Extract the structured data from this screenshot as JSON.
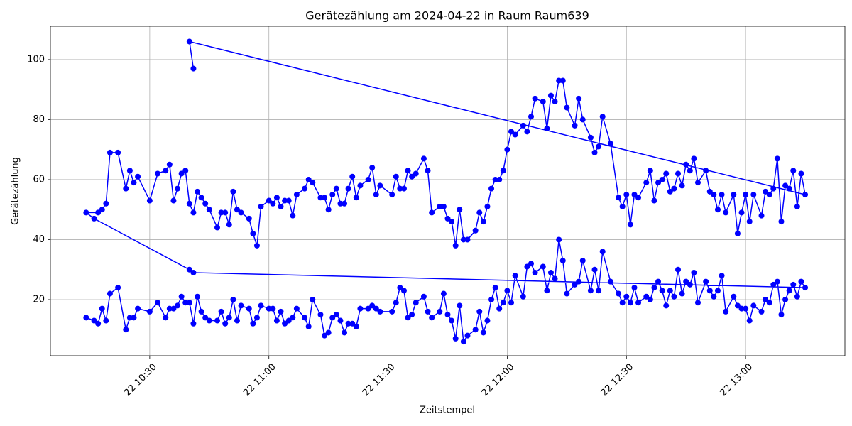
{
  "chart_data": {
    "type": "line",
    "title": "Gerätezählung am 2024-04-22 in Raum Raum639",
    "x_label": "Zeitstempel",
    "y_label": "Gerätezählung",
    "color": "#0000ff",
    "grid": true,
    "xlim": [
      "22 10:05",
      "22 13:25"
    ],
    "xticks": [
      "22 10:30",
      "22 11:00",
      "22 11:30",
      "22 12:00",
      "22 12:30",
      "22 13:00"
    ],
    "ylim": [
      1.3,
      111.1
    ],
    "yticks": [
      20,
      40,
      60,
      80,
      100
    ],
    "x": [
      "22 10:14",
      "22 10:16",
      "22 10:17",
      "22 10:18",
      "22 10:19",
      "22 10:20",
      "22 10:22",
      "22 10:24",
      "22 10:25",
      "22 10:26",
      "22 10:27",
      "22 10:30",
      "22 10:32",
      "22 10:34",
      "22 10:35",
      "22 10:36",
      "22 10:37",
      "22 10:38",
      "22 10:39",
      "22 10:40",
      "22 10:41",
      "22 10:42",
      "22 10:43",
      "22 10:44",
      "22 10:45",
      "22 10:47",
      "22 10:48",
      "22 10:49",
      "22 10:50",
      "22 10:51",
      "22 10:52",
      "22 10:53",
      "22 10:55",
      "22 10:56",
      "22 10:57",
      "22 10:58",
      "22 11:00",
      "22 11:01",
      "22 11:02",
      "22 11:03",
      "22 11:04",
      "22 11:05",
      "22 11:06",
      "22 11:07",
      "22 11:09",
      "22 11:10",
      "22 11:11",
      "22 11:13",
      "22 11:14",
      "22 11:15",
      "22 11:16",
      "22 11:17",
      "22 11:18",
      "22 11:19",
      "22 11:20",
      "22 11:21",
      "22 11:22",
      "22 11:23",
      "22 11:25",
      "22 11:26",
      "22 11:27",
      "22 11:28",
      "22 11:31",
      "22 11:32",
      "22 11:33",
      "22 11:34",
      "22 11:35",
      "22 11:36",
      "22 11:37",
      "22 11:39",
      "22 11:40",
      "22 11:41",
      "22 11:43",
      "22 11:44",
      "22 11:45",
      "22 11:46",
      "22 11:47",
      "22 11:48",
      "22 11:49",
      "22 11:50",
      "22 11:52",
      "22 11:53",
      "22 11:54",
      "22 11:55",
      "22 11:56",
      "22 11:57",
      "22 11:58",
      "22 11:59",
      "22 12:00",
      "22 12:01",
      "22 12:02",
      "22 12:04",
      "22 12:05",
      "22 12:06",
      "22 12:07",
      "22 12:09",
      "22 12:10",
      "22 12:11",
      "22 12:12",
      "22 12:13",
      "22 12:14",
      "22 12:15",
      "22 12:17",
      "22 12:18",
      "22 12:19",
      "22 12:21",
      "22 12:22",
      "22 12:23",
      "22 12:24",
      "22 12:26",
      "22 12:28",
      "22 12:29",
      "22 12:30",
      "22 12:31",
      "22 12:32",
      "22 12:33",
      "22 12:35",
      "22 12:36",
      "22 12:37",
      "22 12:38",
      "22 12:39",
      "22 12:40",
      "22 12:41",
      "22 12:42",
      "22 12:43",
      "22 12:44",
      "22 12:45",
      "22 12:46",
      "22 12:47",
      "22 12:48",
      "22 12:50",
      "22 12:51",
      "22 12:52",
      "22 12:53",
      "22 12:54",
      "22 12:55",
      "22 12:57",
      "22 12:58",
      "22 12:59",
      "22 13:00",
      "22 13:01",
      "22 13:02",
      "22 13:04",
      "22 13:05",
      "22 13:06",
      "22 13:07",
      "22 13:08",
      "22 13:09",
      "22 13:10",
      "22 13:11",
      "22 13:12",
      "22 13:13",
      "22 13:14",
      "22 13:15",
      "22 10:41",
      "22 10:40",
      "22 10:16",
      "22 10:14",
      "22 10:17",
      "22 10:18",
      "22 10:19",
      "22 10:20",
      "22 10:22",
      "22 10:24",
      "22 10:25",
      "22 10:26",
      "22 10:27",
      "22 10:30",
      "22 10:32",
      "22 10:34",
      "22 10:35",
      "22 10:36",
      "22 10:37",
      "22 10:38",
      "22 10:39",
      "22 10:40",
      "22 10:41",
      "22 10:42",
      "22 10:43",
      "22 10:44",
      "22 10:45",
      "22 10:47",
      "22 10:48",
      "22 10:49",
      "22 10:50",
      "22 10:51",
      "22 10:52",
      "22 10:53",
      "22 10:55",
      "22 10:56",
      "22 10:57",
      "22 10:58",
      "22 11:00",
      "22 11:01",
      "22 11:02",
      "22 11:03",
      "22 11:04",
      "22 11:05",
      "22 11:06",
      "22 11:07",
      "22 11:09",
      "22 11:10",
      "22 11:11",
      "22 11:13",
      "22 11:14",
      "22 11:15",
      "22 11:16",
      "22 11:17",
      "22 11:18",
      "22 11:19",
      "22 11:20",
      "22 11:21",
      "22 11:22",
      "22 11:23",
      "22 11:25",
      "22 11:26",
      "22 11:27",
      "22 11:28",
      "22 11:31",
      "22 11:32",
      "22 11:33",
      "22 11:34",
      "22 11:35",
      "22 11:36",
      "22 11:37",
      "22 11:39",
      "22 11:40",
      "22 11:41",
      "22 11:43",
      "22 11:44",
      "22 11:45",
      "22 11:46",
      "22 11:47",
      "22 11:48",
      "22 11:49",
      "22 11:50",
      "22 11:52",
      "22 11:53",
      "22 11:54",
      "22 11:55",
      "22 11:56",
      "22 11:57",
      "22 11:58",
      "22 11:59",
      "22 12:00",
      "22 12:01",
      "22 12:02",
      "22 12:04",
      "22 12:05",
      "22 12:06",
      "22 12:07",
      "22 12:09",
      "22 12:10",
      "22 12:11",
      "22 12:12",
      "22 12:13",
      "22 12:14",
      "22 12:15",
      "22 12:17",
      "22 12:18",
      "22 12:19",
      "22 12:21",
      "22 12:22",
      "22 12:23",
      "22 12:24",
      "22 12:26",
      "22 12:28",
      "22 12:29",
      "22 12:30",
      "22 12:31",
      "22 12:32",
      "22 12:33",
      "22 12:35",
      "22 12:36",
      "22 12:37",
      "22 12:38",
      "22 12:39",
      "22 12:40",
      "22 12:41",
      "22 12:42",
      "22 12:43",
      "22 12:44",
      "22 12:45",
      "22 12:46",
      "22 12:47",
      "22 12:48",
      "22 12:50",
      "22 12:51",
      "22 12:52",
      "22 12:53",
      "22 12:54",
      "22 12:55",
      "22 12:57",
      "22 12:58",
      "22 12:59",
      "22 13:00",
      "22 13:01",
      "22 13:02",
      "22 13:04",
      "22 13:05",
      "22 13:06",
      "22 13:07",
      "22 13:08",
      "22 13:09",
      "22 13:10",
      "22 13:11",
      "22 13:12",
      "22 13:13",
      "22 13:14",
      "22 13:15",
      "22 10:40",
      "22 10:41"
    ],
    "values": [
      14,
      13,
      12,
      17,
      13,
      22,
      24,
      10,
      14,
      14,
      17,
      16,
      19,
      14,
      17,
      17,
      18,
      21,
      19,
      19,
      12,
      21,
      16,
      14,
      13,
      13,
      16,
      12,
      14,
      20,
      13,
      18,
      17,
      12,
      14,
      18,
      17,
      17,
      13,
      16,
      12,
      13,
      14,
      17,
      14,
      11,
      20,
      15,
      8,
      9,
      14,
      15,
      13,
      9,
      12,
      12,
      11,
      17,
      17,
      18,
      17,
      16,
      16,
      19,
      24,
      23,
      14,
      15,
      19,
      21,
      16,
      14,
      16,
      22,
      15,
      13,
      7,
      18,
      6,
      8,
      10,
      16,
      9,
      13,
      20,
      24,
      17,
      19,
      23,
      19,
      28,
      21,
      31,
      32,
      29,
      31,
      23,
      29,
      27,
      40,
      33,
      22,
      25,
      26,
      33,
      23,
      30,
      23,
      36,
      26,
      22,
      19,
      21,
      19,
      24,
      19,
      21,
      20,
      24,
      26,
      23,
      18,
      23,
      21,
      30,
      22,
      26,
      25,
      29,
      19,
      26,
      23,
      21,
      23,
      28,
      16,
      21,
      18,
      17,
      17,
      13,
      18,
      16,
      20,
      19,
      25,
      26,
      15,
      20,
      23,
      25,
      21,
      26,
      24,
      29,
      30,
      47,
      49,
      49,
      50,
      52,
      69,
      69,
      57,
      63,
      59,
      61,
      53,
      62,
      63,
      65,
      53,
      57,
      62,
      63,
      52,
      49,
      56,
      54,
      52,
      50,
      44,
      49,
      49,
      45,
      56,
      50,
      49,
      47,
      42,
      38,
      51,
      53,
      52,
      54,
      51,
      53,
      53,
      48,
      55,
      57,
      60,
      59,
      54,
      54,
      50,
      55,
      57,
      52,
      52,
      57,
      61,
      54,
      58,
      60,
      64,
      55,
      58,
      55,
      61,
      57,
      57,
      63,
      61,
      62,
      67,
      63,
      49,
      51,
      51,
      47,
      46,
      38,
      50,
      40,
      40,
      43,
      49,
      46,
      51,
      57,
      60,
      60,
      63,
      70,
      76,
      75,
      78,
      76,
      81,
      87,
      86,
      77,
      88,
      86,
      93,
      93,
      84,
      78,
      87,
      80,
      74,
      69,
      71,
      81,
      72,
      54,
      51,
      55,
      45,
      55,
      54,
      59,
      63,
      53,
      59,
      60,
      62,
      56,
      57,
      62,
      58,
      65,
      63,
      67,
      59,
      63,
      56,
      55,
      50,
      55,
      49,
      55,
      42,
      49,
      55,
      46,
      55,
      48,
      56,
      55,
      57,
      67,
      46,
      58,
      57,
      63,
      51,
      62,
      55,
      106,
      97
    ]
  }
}
